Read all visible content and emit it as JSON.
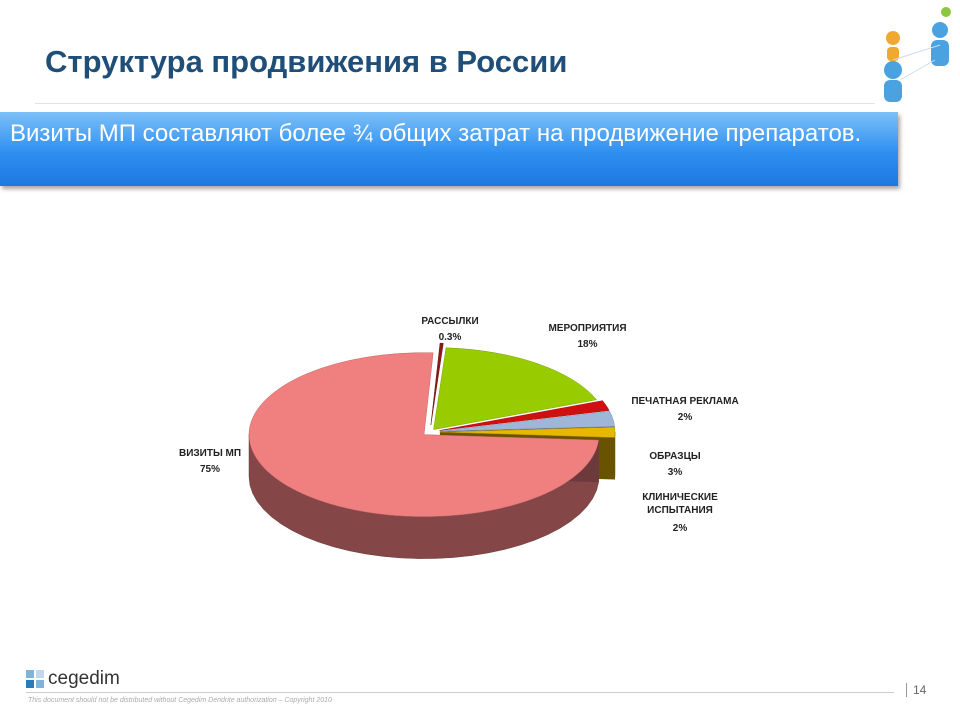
{
  "slide": {
    "title": "Структура продвижения в России",
    "banner": "Визиты МП составляют более ¾ общих затрат на продвижение препаратов.",
    "logo": "cegedim",
    "footer": "This document should not be distributed without Cegedim Dendrite authorization – Copyright 2010",
    "page": "14"
  },
  "chart_data": {
    "type": "pie",
    "categories": [
      "РАССЫЛКИ",
      "МЕРОПРИЯТИЯ",
      "ПЕЧАТНАЯ РЕКЛАМА",
      "ОБРАЗЦЫ",
      "КЛИНИЧЕСКИЕ ИСПЫТАНИЯ",
      "ВИЗИТЫ МП"
    ],
    "values": [
      0.3,
      18,
      2,
      3,
      2,
      75
    ],
    "value_labels": [
      "0.3%",
      "18%",
      "2%",
      "3%",
      "2%",
      "75%"
    ],
    "colors": [
      "#8b1a1a",
      "#99cc00",
      "#d01010",
      "#9fb6d8",
      "#e8b800",
      "#f08080"
    ]
  }
}
